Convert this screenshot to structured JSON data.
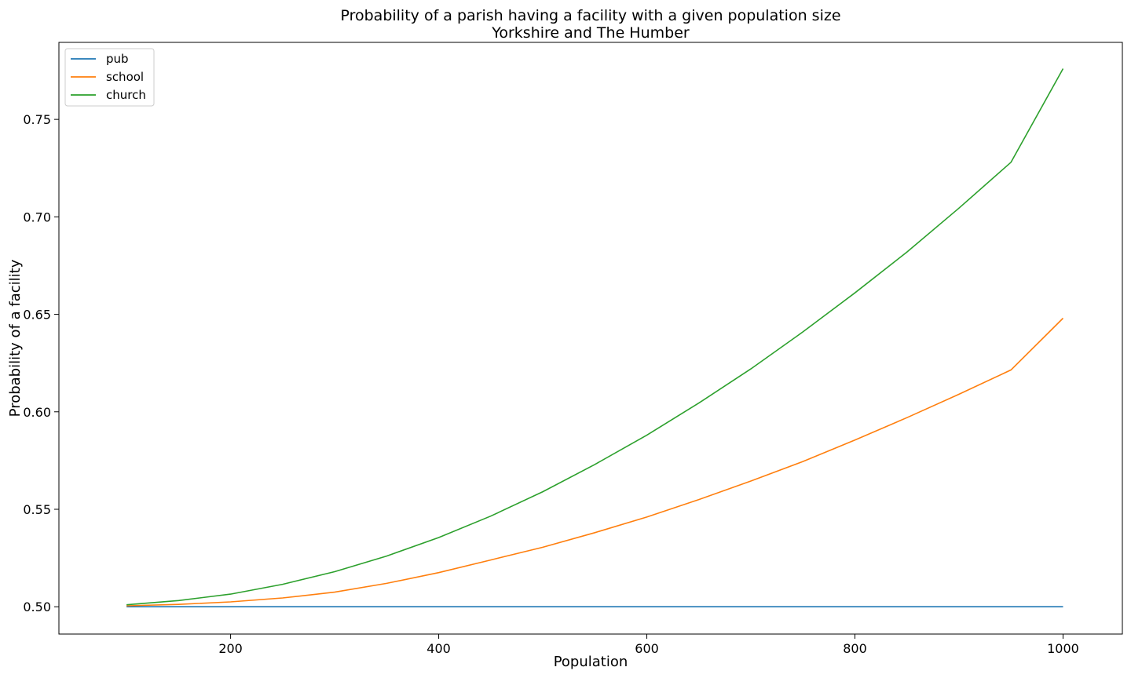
{
  "chart_data": {
    "type": "line",
    "title": "Probability of a parish having a facility with a given population size",
    "subtitle": "Yorkshire and The Humber",
    "xlabel": "Population",
    "ylabel": "Probability of a facility",
    "xlim": [
      35,
      1057
    ],
    "ylim": [
      0.486,
      0.7895
    ],
    "x_ticks": [
      200,
      400,
      600,
      800,
      1000
    ],
    "x_tick_labels": [
      "200",
      "400",
      "600",
      "800",
      "1000"
    ],
    "y_ticks": [
      0.5,
      0.55,
      0.6,
      0.65,
      0.7,
      0.75
    ],
    "y_tick_labels": [
      "0.50",
      "0.55",
      "0.60",
      "0.65",
      "0.70",
      "0.75"
    ],
    "grid": false,
    "legend_position": "top-left",
    "x": [
      100,
      150,
      200,
      250,
      300,
      350,
      400,
      450,
      500,
      550,
      600,
      650,
      700,
      750,
      800,
      850,
      900,
      950,
      1000
    ],
    "series": [
      {
        "name": "pub",
        "color": "#1f77b4",
        "values": [
          0.5,
          0.5,
          0.5,
          0.5,
          0.5,
          0.5,
          0.5,
          0.5,
          0.5,
          0.5,
          0.5,
          0.5,
          0.5,
          0.5,
          0.5,
          0.5,
          0.5,
          0.5,
          0.5
        ]
      },
      {
        "name": "school",
        "color": "#ff7f0e",
        "values": [
          0.5005,
          0.5012,
          0.5025,
          0.5045,
          0.5075,
          0.512,
          0.5175,
          0.524,
          0.5305,
          0.538,
          0.546,
          0.555,
          0.5645,
          0.5745,
          0.5855,
          0.597,
          0.609,
          0.6215,
          0.648
        ]
      },
      {
        "name": "church",
        "color": "#2ca02c",
        "values": [
          0.501,
          0.5032,
          0.5065,
          0.5115,
          0.518,
          0.526,
          0.5355,
          0.5465,
          0.559,
          0.573,
          0.588,
          0.6045,
          0.622,
          0.641,
          0.661,
          0.682,
          0.7045,
          0.728,
          0.776
        ]
      }
    ]
  }
}
